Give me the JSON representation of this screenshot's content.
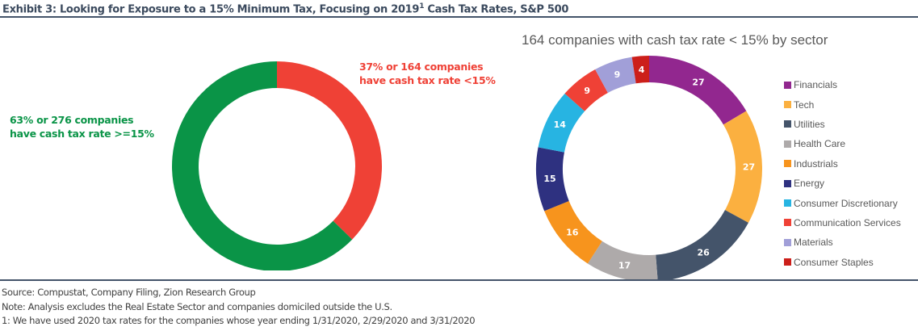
{
  "header": {
    "title_prefix": "Exhibit 3: Looking for Exposure to a 15% Minimum Tax, Focusing on 2019",
    "title_sup": "1",
    "title_suffix": " Cash Tax Rates, S&P 500"
  },
  "left_chart": {
    "label_green_line1": "63% or 276 companies",
    "label_green_line2": "have cash tax rate >=15%",
    "label_red_line1": "37% or 164 companies",
    "label_red_line2": "have cash tax rate <15%"
  },
  "right_chart": {
    "title": "164 companies with cash tax rate < 15% by sector"
  },
  "footer": {
    "source": "Source: Compustat, Company Filing, Zion Research Group",
    "note": "Note: Analysis excludes the Real Estate Sector and companies domiciled outside the U.S.",
    "footnote": "1: We have used 2020 tax rates for the companies whose year ending 1/31/2020, 2/29/2020 and 3/31/2020"
  },
  "chart_data": [
    {
      "type": "pie",
      "variant": "donut",
      "title": "",
      "categories": [
        "Cash tax rate <15%",
        "Cash tax rate >=15%"
      ],
      "values": [
        164,
        276
      ],
      "percentages": [
        37,
        63
      ],
      "colors": [
        "#ef4136",
        "#0a9447"
      ],
      "start": "top",
      "direction": "clockwise"
    },
    {
      "type": "pie",
      "variant": "donut",
      "title": "164 companies with cash tax rate < 15% by sector",
      "categories": [
        "Financials",
        "Tech",
        "Utilities",
        "Health Care",
        "Industrials",
        "Energy",
        "Consumer Discretionary",
        "Communication Services",
        "Materials",
        "Consumer Staples"
      ],
      "values": [
        27,
        27,
        26,
        17,
        16,
        15,
        14,
        9,
        9,
        4
      ],
      "colors": [
        "#92278f",
        "#fbb040",
        "#44546a",
        "#aeaaaa",
        "#f7941d",
        "#2e3180",
        "#27b4e2",
        "#ef4136",
        "#a19fd8",
        "#cc1f1a"
      ],
      "legend": "right",
      "data_labels": true,
      "start": "top",
      "direction": "clockwise"
    }
  ]
}
